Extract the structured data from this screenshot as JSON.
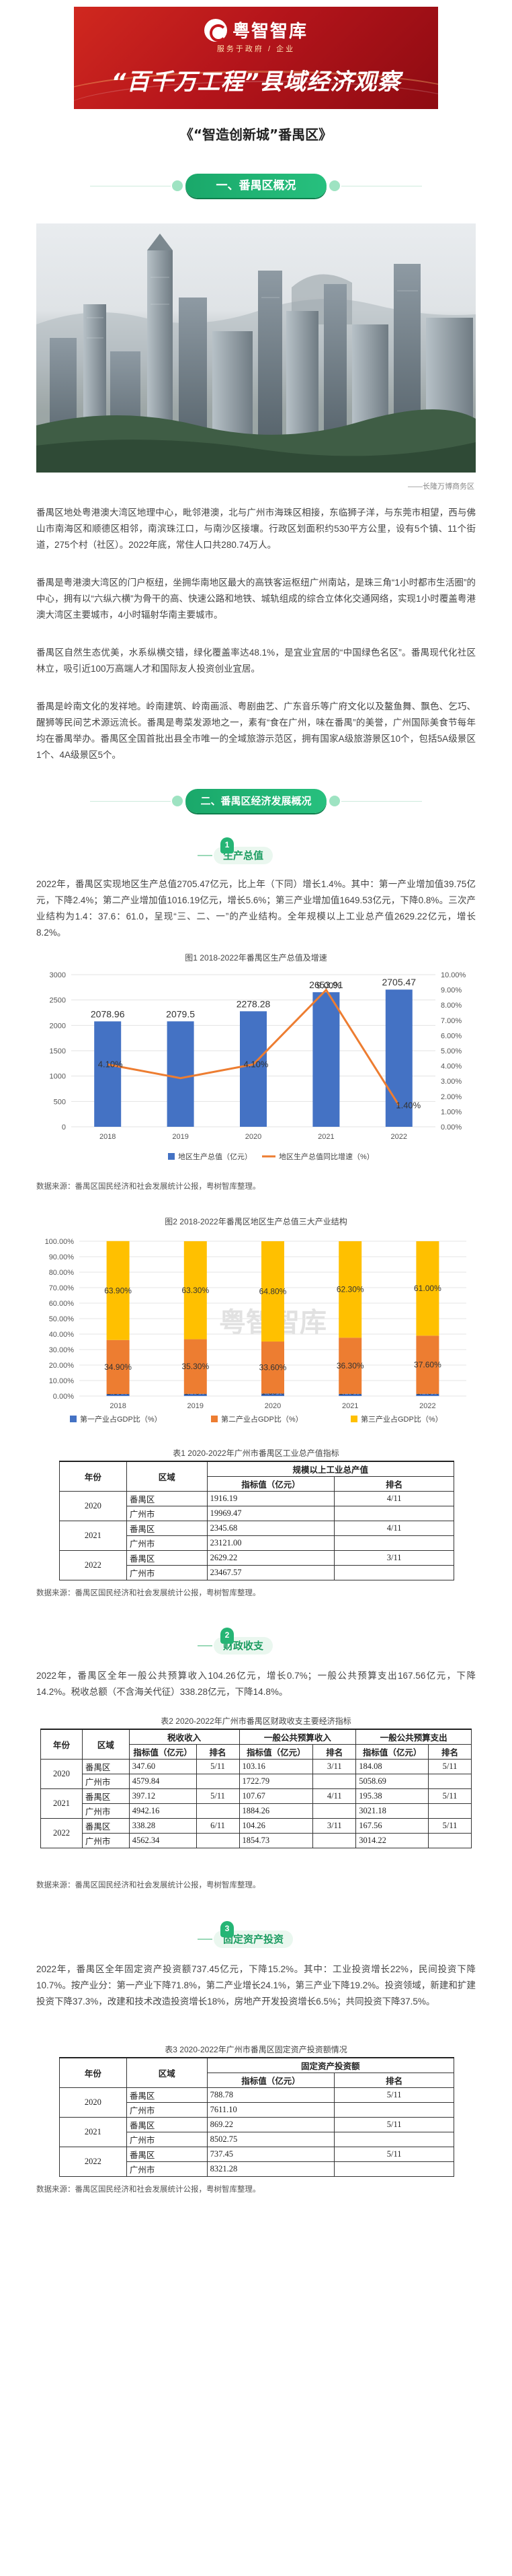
{
  "banner": {
    "logo_text": "粤智智库",
    "logo_sub": "服务于政府 / 企业",
    "title": "“百千万工程”县域经济观察"
  },
  "subtitle": "《“智造创新城”番禺区》",
  "section1": {
    "title": "一、番禺区概况",
    "photo_caption": "——长隆万博商务区",
    "paragraphs": [
      "番禺区地处粤港澳大湾区地理中心，毗邻港澳，北与广州市海珠区相接，东临狮子洋，与东莞市相望，西与佛山市南海区和顺德区相邻，南滨珠江口，与南沙区接壤。行政区划面积约530平方公里，设有5个镇、11个街道，275个村（社区）。2022年底，常住人口共280.74万人。",
      "番禺是粤港澳大湾区的门户枢纽，坐拥华南地区最大的高铁客运枢纽广州南站，是珠三角“1小时都市生活圈”的中心，拥有以“六纵六横”为骨干的高、快速公路和地铁、城轨组成的综合立体化交通网络，实现1小时覆盖粤港澳大湾区主要城市，4小时辐射华南主要城市。",
      "番禺区自然生态优美，水系纵横交错，绿化覆盖率达48.1%，是宜业宜居的“中国绿色名区”。番禺现代化社区林立，吸引近100万高端人才和国际友人投资创业宜居。",
      "番禺是岭南文化的发祥地。岭南建筑、岭南画派、粤剧曲艺、广东音乐等广府文化以及鳌鱼舞、飘色、乞巧、醒狮等民间艺术源远流长。番禺是粤菜发源地之一，素有“食在广州，味在番禺”的美誉，广州国际美食节每年均在番禺举办。番禺区全国首批出县全市唯一的全域旅游示范区，拥有国家A级旅游景区10个，包括5A级景区1个、4A级景区5个。"
    ]
  },
  "section2": {
    "title": "二、番禺区经济发展概况",
    "gdp": {
      "heading_num": "1",
      "heading": "生产总值",
      "paragraph": "2022年，番禺区实现地区生产总值2705.47亿元，比上年（下同）增长1.4%。其中：第一产业增加值39.75亿元，下降2.4%；第二产业增加值1016.19亿元，增长5.6%；第三产业增加值1649.53亿元，下降0.8%。三次产业结构为1.4：37.6：61.0，呈现“三、二、一”的产业结构。全年规模以上工业总产值2629.22亿元，增长8.2%。",
      "fig1_title": "图1  2018-2022年番禺区生产总值及增速",
      "fig2_title": "图2  2018-2022年番禺区地区生产总值三大产业结构",
      "source1": "数据来源：番禺区国民经济和社会发展统计公报，粤树智库整理。",
      "source2": "数据来源：番禺区国民经济和社会发展统计公报，粤树智库整理。",
      "table_title": "表1  2020-2022年广州市番禺区工业总产值指标",
      "table_source": "数据来源：番禺区国民经济和社会发展统计公报，粤树智库整理。",
      "table": {
        "col_year": "年份",
        "col_region": "区域",
        "col_group": "规模以上工业总产值",
        "col_value": "指标值（亿元）",
        "col_rank": "排名",
        "rows": [
          {
            "year": "2020",
            "region": "番禺区",
            "value": "1916.19",
            "rank": "4/11"
          },
          {
            "year": "",
            "region": "广州市",
            "value": "19969.47",
            "rank": ""
          },
          {
            "year": "2021",
            "region": "番禺区",
            "value": "2345.68",
            "rank": "4/11"
          },
          {
            "year": "",
            "region": "广州市",
            "value": "23121.00",
            "rank": ""
          },
          {
            "year": "2022",
            "region": "番禺区",
            "value": "2629.22",
            "rank": "3/11"
          },
          {
            "year": "",
            "region": "广州市",
            "value": "23467.57",
            "rank": ""
          }
        ]
      }
    },
    "finance": {
      "heading_num": "2",
      "heading": "财政收支",
      "paragraph": "2022年，番禺区全年一般公共预算收入104.26亿元，增长0.7%；一般公共预算支出167.56亿元，下降14.2%。税收总额（不含海关代征）338.28亿元，下降14.8%。",
      "table_title": "表2  2020-2022年广州市番禺区财政收支主要经济指标",
      "table_source": "数据来源：番禺区国民经济和社会发展统计公报，粤树智库整理。",
      "table": {
        "col_year": "年份",
        "col_region": "区域",
        "groups": [
          "税收收入",
          "一般公共预算收入",
          "一般公共预算支出"
        ],
        "col_value": "指标值（亿元）",
        "col_rank": "排名",
        "rows": [
          {
            "year": "2020",
            "region": "番禺区",
            "v": [
              "347.60",
              "103.16",
              "184.08"
            ],
            "r": [
              "5/11",
              "3/11",
              "5/11"
            ]
          },
          {
            "year": "",
            "region": "广州市",
            "v": [
              "4579.84",
              "1722.79",
              "5058.69"
            ],
            "r": [
              "",
              "",
              ""
            ]
          },
          {
            "year": "2021",
            "region": "番禺区",
            "v": [
              "397.12",
              "107.67",
              "195.38"
            ],
            "r": [
              "5/11",
              "4/11",
              "5/11"
            ]
          },
          {
            "year": "",
            "region": "广州市",
            "v": [
              "4942.16",
              "1884.26",
              "3021.18"
            ],
            "r": [
              "",
              "",
              ""
            ]
          },
          {
            "year": "2022",
            "region": "番禺区",
            "v": [
              "338.28",
              "104.26",
              "167.56"
            ],
            "r": [
              "6/11",
              "3/11",
              "5/11"
            ]
          },
          {
            "year": "",
            "region": "广州市",
            "v": [
              "4562.34",
              "1854.73",
              "3014.22"
            ],
            "r": [
              "",
              "",
              ""
            ]
          }
        ]
      }
    },
    "investment": {
      "heading_num": "3",
      "heading": "固定资产投资",
      "paragraph": "2022年，番禺区全年固定资产投资额737.45亿元，下降15.2%。其中：工业投资增长22%，民间投资下降10.7%。按产业分：第一产业下降71.8%，第二产业增长24.1%，第三产业下降19.2%。投资领域，新建和扩建投资下降37.3%，改建和技术改造投资增长18%，房地产开发投资增长6.5%；共同投资下降37.5%。",
      "table_title": "表3  2020-2022年广州市番禺区固定资产投资额情况",
      "table_source": "数据来源：番禺区国民经济和社会发展统计公报，粤树智库整理。",
      "table": {
        "col_year": "年份",
        "col_region": "区域",
        "col_group": "固定资产投资额",
        "col_value": "指标值（亿元）",
        "col_rank": "排名",
        "rows": [
          {
            "year": "2020",
            "region": "番禺区",
            "value": "788.78",
            "rank": "5/11"
          },
          {
            "year": "",
            "region": "广州市",
            "value": "7611.10",
            "rank": ""
          },
          {
            "year": "2021",
            "region": "番禺区",
            "value": "869.22",
            "rank": "5/11"
          },
          {
            "year": "",
            "region": "广州市",
            "value": "8502.75",
            "rank": ""
          },
          {
            "year": "2022",
            "region": "番禺区",
            "value": "737.45",
            "rank": "5/11"
          },
          {
            "year": "",
            "region": "广州市",
            "value": "8321.28",
            "rank": ""
          }
        ]
      }
    }
  },
  "chart_data": [
    {
      "type": "bar",
      "title": "图1  2018-2022年番禺区生产总值及增速",
      "categories": [
        "2018",
        "2019",
        "2020",
        "2021",
        "2022"
      ],
      "series": [
        {
          "name": "地区生产总值（亿元）",
          "type": "bar",
          "values": [
            2078.96,
            2079.5,
            2278.28,
            2653.91,
            2705.47
          ],
          "axis": "left"
        },
        {
          "name": "地区生产总值同比增速（%）",
          "type": "line",
          "values": [
            4.1,
            3.2,
            4.1,
            9.0,
            1.4
          ],
          "axis": "right"
        }
      ],
      "value_labels": [
        "2078.96",
        "2079.5",
        "2278.28",
        "2653.91",
        "2705.47"
      ],
      "line_labels": [
        "4.10%",
        "",
        "4.10%",
        "9.00%",
        "1.40%"
      ],
      "ylim": [
        0,
        3000
      ],
      "yticks": [
        "0",
        "500",
        "1000",
        "1500",
        "2000",
        "2500",
        "3000"
      ],
      "y2lim": [
        0,
        10
      ],
      "y2ticks": [
        "0.00%",
        "1.00%",
        "2.00%",
        "3.00%",
        "4.00%",
        "5.00%",
        "6.00%",
        "7.00%",
        "8.00%",
        "9.00%",
        "10.00%"
      ],
      "legend": "bottom",
      "colors": [
        "#4472c4",
        "#ed7d31"
      ]
    },
    {
      "type": "bar",
      "stacked": true,
      "title": "图2  2018-2022年番禺区地区生产总值三大产业结构",
      "categories": [
        "2018",
        "2019",
        "2020",
        "2021",
        "2022"
      ],
      "series": [
        {
          "name": "第一产业占GDP比（%）",
          "values": [
            1.3,
            1.4,
            1.6,
            1.4,
            1.4
          ]
        },
        {
          "name": "第二产业占GDP比（%）",
          "values": [
            34.9,
            35.3,
            33.6,
            36.3,
            37.6
          ]
        },
        {
          "name": "第三产业占GDP比（%）",
          "values": [
            63.9,
            63.3,
            64.8,
            62.3,
            61.0
          ]
        }
      ],
      "value_labels": [
        [
          "1.30%",
          "1.40%",
          "1.60%",
          "1.40%",
          "1.40%"
        ],
        [
          "34.90%",
          "35.30%",
          "33.60%",
          "36.30%",
          "37.60%"
        ],
        [
          "63.90%",
          "63.30%",
          "64.80%",
          "62.30%",
          "61.00%"
        ]
      ],
      "yticks": [
        "0.00%",
        "10.00%",
        "20.00%",
        "30.00%",
        "40.00%",
        "50.00%",
        "60.00%",
        "70.00%",
        "80.00%",
        "90.00%",
        "100.00%"
      ],
      "ylim": [
        0,
        100
      ],
      "legend": "bottom",
      "colors": [
        "#4472c4",
        "#ed7d31",
        "#ffc000"
      ]
    }
  ]
}
